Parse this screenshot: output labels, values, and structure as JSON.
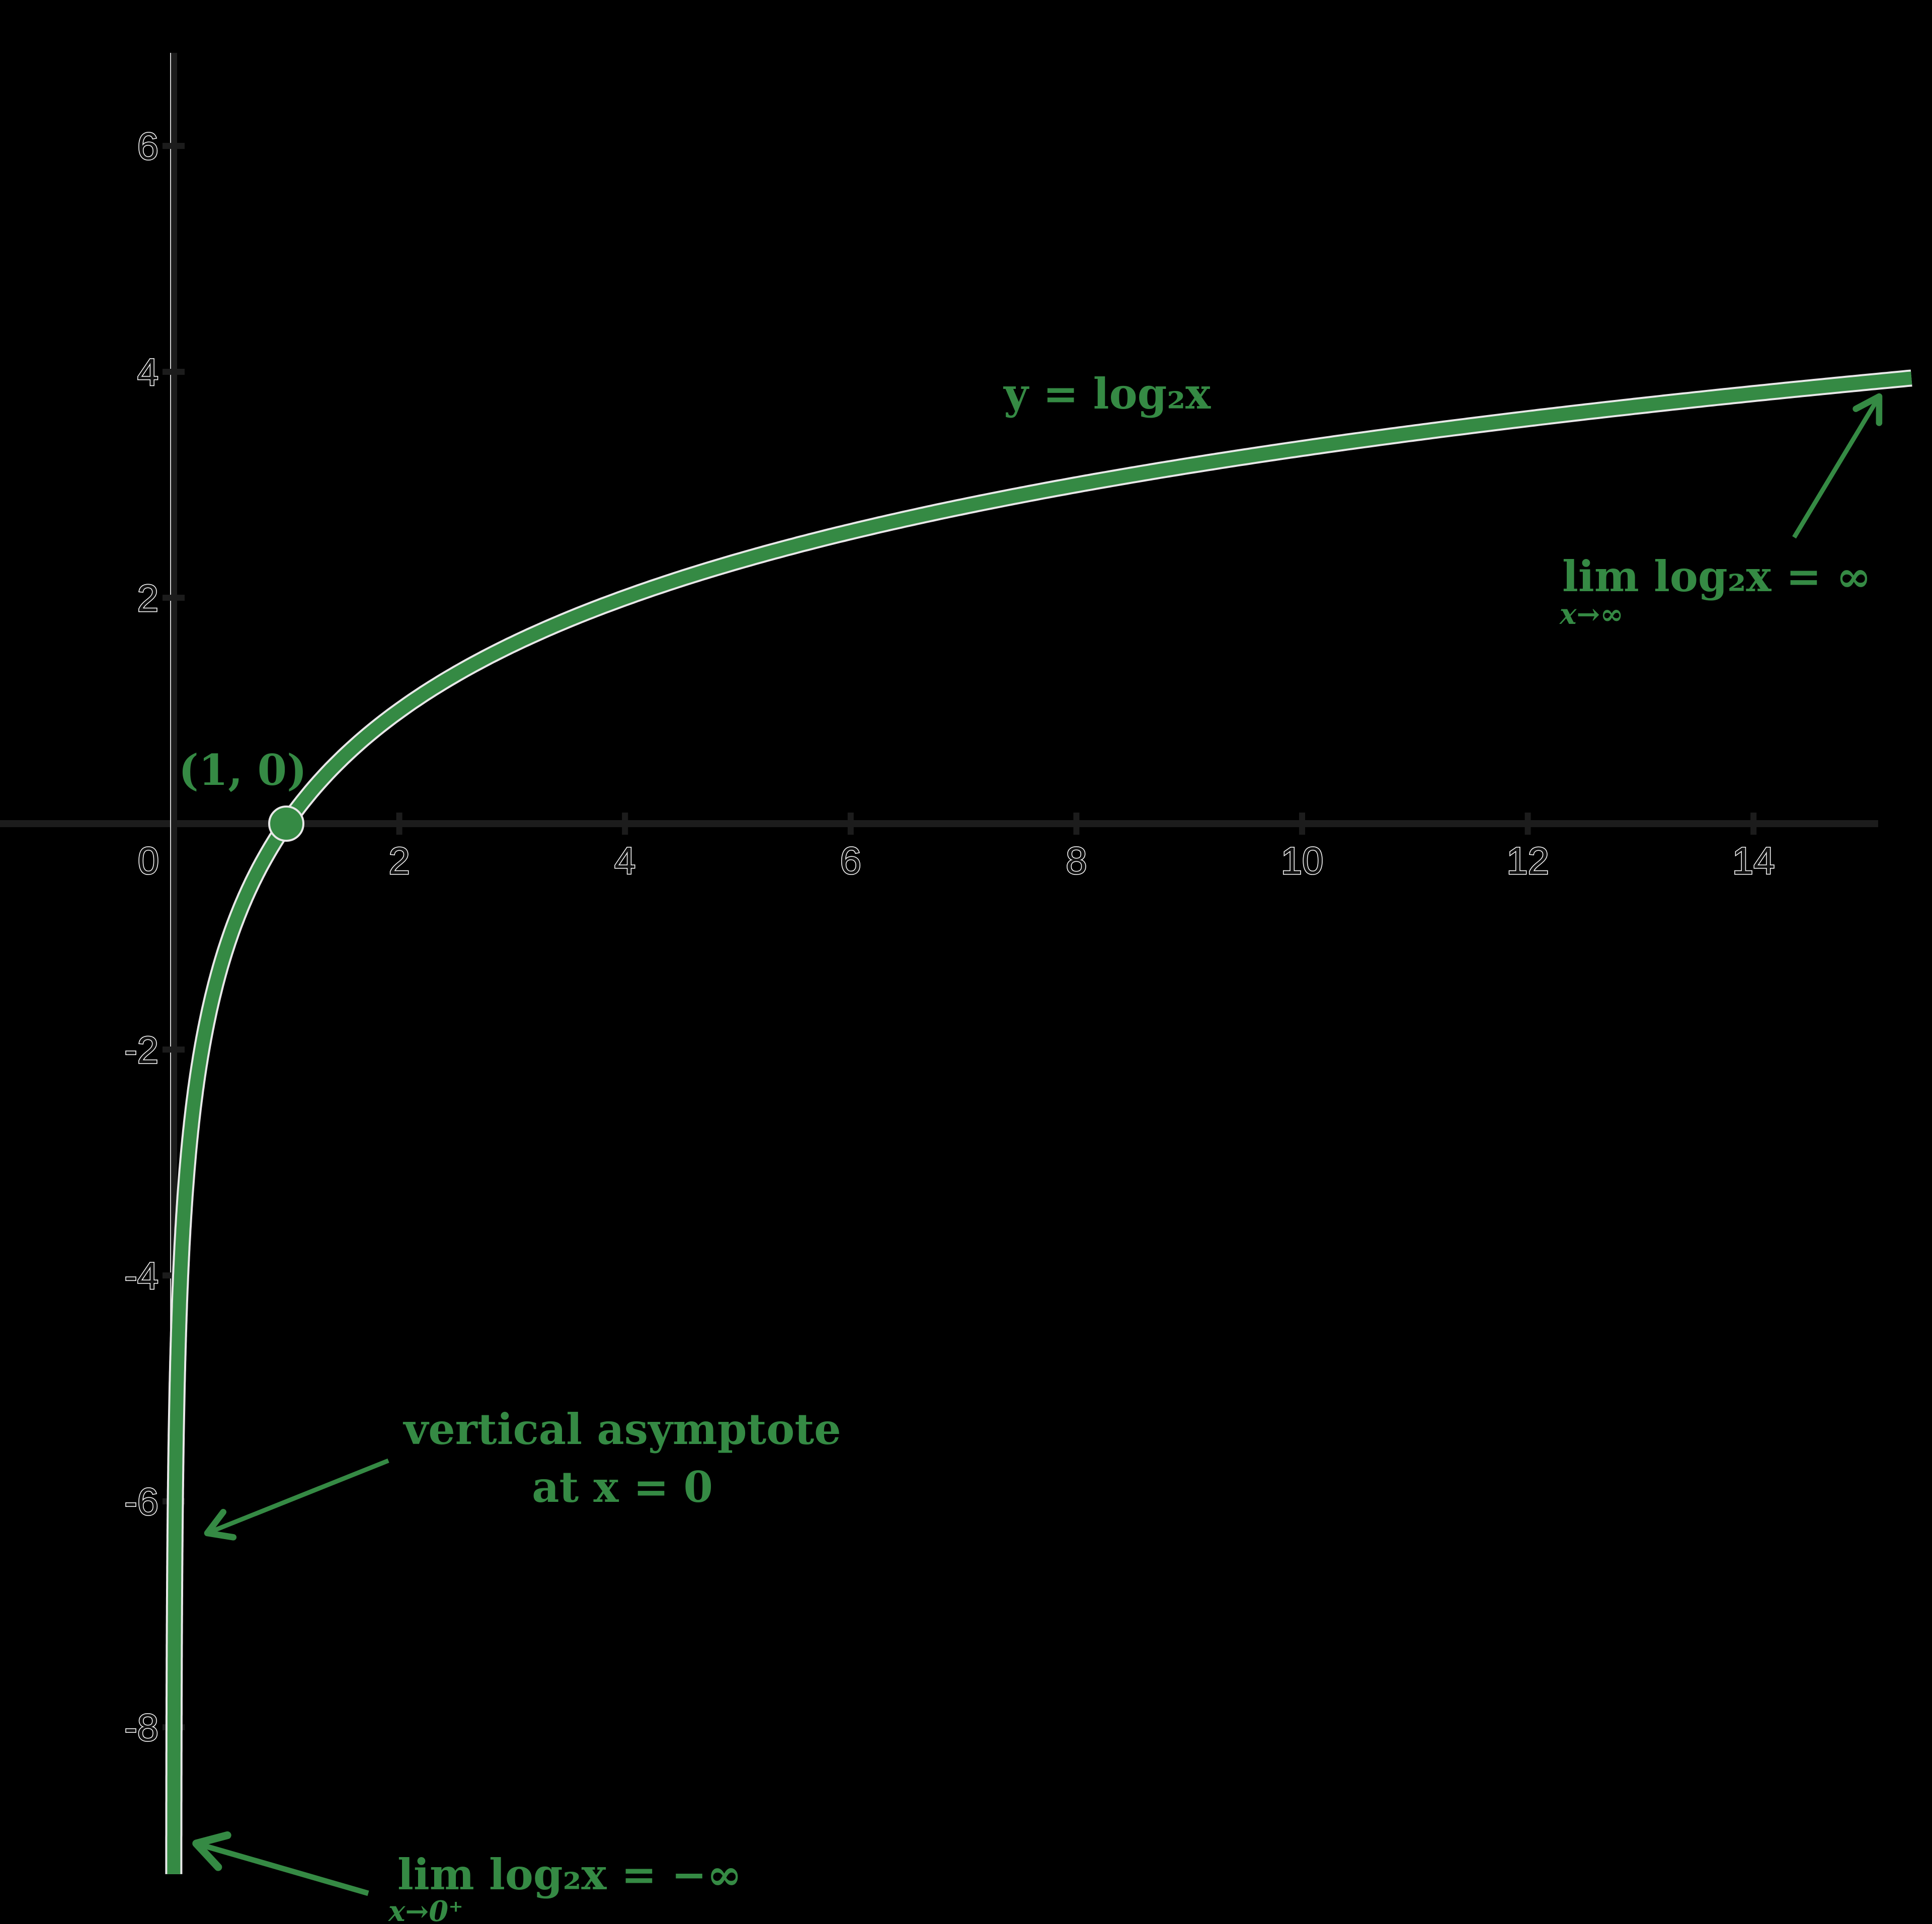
{
  "colors": {
    "background": "#000000",
    "curve": "#358A44",
    "axis": "#1c1c1c",
    "label_fill": "#111111",
    "label_outline": "#ffffff"
  },
  "annotations": {
    "function_label": "y = log₂x",
    "point_label": "(1, 0)",
    "right_limit_main": "lim log₂x = ∞",
    "right_limit_sub": "x→∞",
    "asymptote_line1": "vertical asymptote",
    "asymptote_line2": "at x = 0",
    "left_limit_main": "lim  log₂x = −∞",
    "left_limit_sub": "x→0⁺"
  },
  "chart_data": {
    "type": "line",
    "title": "",
    "function": "y = log2(x)",
    "xlabel": "",
    "ylabel": "",
    "xlim": [
      -1.54,
      15.5
    ],
    "ylim": [
      -9.4,
      6.8
    ],
    "grid": false,
    "legend": "none",
    "x_ticks": [
      0,
      2,
      4,
      6,
      8,
      10,
      12,
      14
    ],
    "x_tick_labels": [
      "0",
      "2",
      "4",
      "6",
      "8",
      "10",
      "12",
      "14"
    ],
    "y_ticks": [
      6,
      4,
      2,
      -2,
      -4,
      -6,
      -8
    ],
    "y_tick_labels": [
      "6",
      "4",
      "2",
      "-2",
      "-4",
      "-6",
      "-8"
    ],
    "series": [
      {
        "name": "y = log₂x",
        "x": [
          0.0016,
          0.01,
          0.05,
          0.125,
          0.25,
          0.5,
          1,
          2,
          4,
          6,
          8,
          10,
          12,
          14,
          15.4
        ],
        "y": [
          -9.3,
          -6.64,
          -4.32,
          -3,
          -2,
          -1,
          0,
          1,
          2,
          2.58,
          3,
          3.32,
          3.58,
          3.81,
          3.94
        ]
      }
    ],
    "highlighted_points": [
      {
        "x": 1,
        "y": 0,
        "label": "(1, 0)"
      }
    ],
    "asymptote": {
      "type": "vertical",
      "x": 0,
      "label": "vertical asymptote at x = 0"
    },
    "limits": [
      {
        "expression": "lim x→∞ log₂x = ∞"
      },
      {
        "expression": "lim x→0⁺ log₂x = −∞"
      }
    ]
  }
}
